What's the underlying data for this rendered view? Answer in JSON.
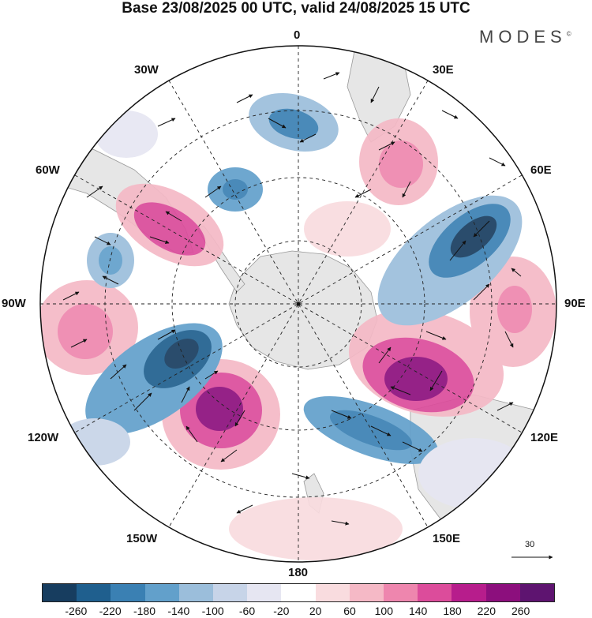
{
  "title": "Base 23/08/2025 00 UTC, valid 24/08/2025 15 UTC",
  "brand": "MODES",
  "brand_mark": "©",
  "longitude_labels": {
    "top": "0",
    "top_right": "30E",
    "right_upper": "60E",
    "right": "90E",
    "right_lower": "120E",
    "bottom_right": "150E",
    "bottom": "180",
    "bottom_left": "150W",
    "left_lower": "120W",
    "left": "90W",
    "left_upper": "60W",
    "top_left": "30W"
  },
  "vector_reference": "30",
  "colorbar": {
    "colors": [
      "#173d5f",
      "#1f5f8e",
      "#3a80b3",
      "#62a0cb",
      "#9bbedb",
      "#c7d4e8",
      "#e6e6f2",
      "#ffffff",
      "#f9dcdf",
      "#f5b9c6",
      "#ee86ae",
      "#dc4c9b",
      "#b71d8c",
      "#8c0f7d",
      "#5e1470"
    ],
    "tick_labels": [
      "-260",
      "-220",
      "-180",
      "-140",
      "-100",
      "-60",
      "-20",
      "20",
      "60",
      "100",
      "140",
      "180",
      "220",
      "260"
    ]
  },
  "colors": {
    "land": "#e6e6e6",
    "neg_strong": "#173d5f",
    "neg_mid": "#3a80b3",
    "neg_weak": "#9bbedb",
    "pos_weak": "#f5b9c6",
    "pos_mid": "#dc4c9b",
    "pos_strong": "#8c0f7d"
  }
}
